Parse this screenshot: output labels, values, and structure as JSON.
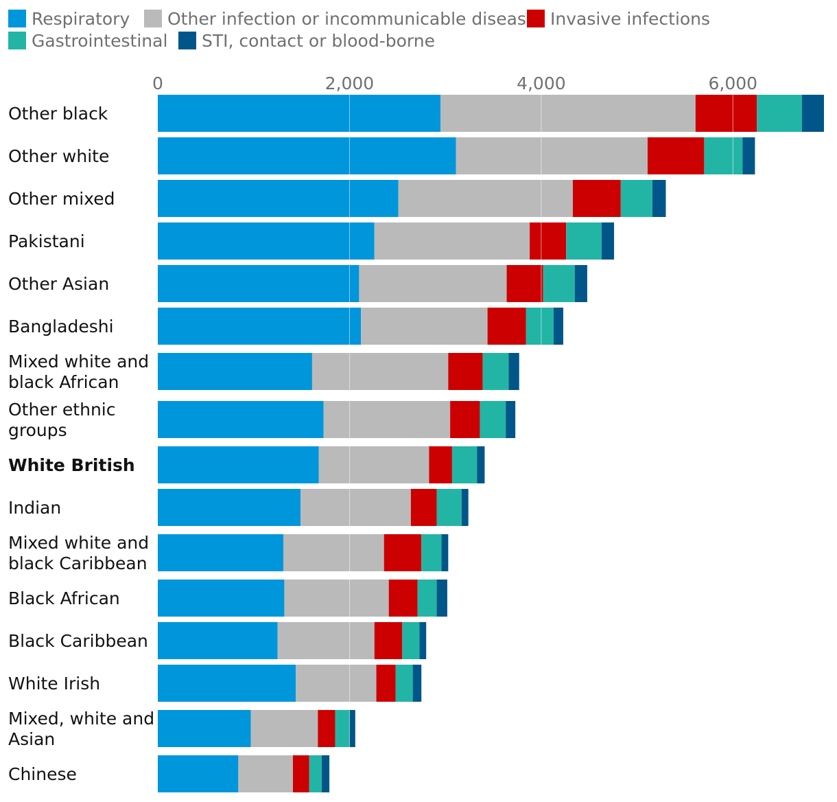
{
  "chart_data": {
    "type": "bar",
    "orientation": "horizontal",
    "stacked": true,
    "title": "",
    "xlabel": "",
    "ylabel": "",
    "xlim": [
      0,
      7000
    ],
    "x_ticks": [
      0,
      2000,
      4000,
      6000
    ],
    "x_tick_labels": [
      "0",
      "2,000",
      "4,000",
      "6,000"
    ],
    "grid": true,
    "legend_position": "top-left",
    "categories": [
      "Other black",
      "Other white",
      "Other mixed",
      "Pakistani",
      "Other Asian",
      "Bangladeshi",
      "Mixed white and black African",
      "Other ethnic groups",
      "White British",
      "Indian",
      "Mixed white and black Caribbean",
      "Black African",
      "Black Caribbean",
      "White Irish",
      "Mixed, white and Asian",
      "Chinese"
    ],
    "highlighted_category": "White British",
    "series": [
      {
        "name": "Respiratory",
        "color": "#0096db",
        "values": [
          2950,
          3110,
          2510,
          2260,
          2100,
          2120,
          1610,
          1730,
          1680,
          1490,
          1310,
          1320,
          1250,
          1440,
          970,
          840
        ]
      },
      {
        "name": "Other infection or incommunicable disease",
        "color": "#bababa",
        "values": [
          2660,
          2000,
          1820,
          1620,
          1540,
          1320,
          1420,
          1320,
          1150,
          1150,
          1050,
          1090,
          1010,
          840,
          700,
          570
        ]
      },
      {
        "name": "Invasive infections",
        "color": "#cc0000",
        "values": [
          640,
          590,
          500,
          380,
          380,
          400,
          360,
          310,
          240,
          270,
          390,
          300,
          290,
          200,
          180,
          170
        ]
      },
      {
        "name": "Gastrointestinal",
        "color": "#22b5a5",
        "values": [
          470,
          400,
          330,
          370,
          330,
          290,
          270,
          270,
          260,
          260,
          210,
          200,
          180,
          180,
          150,
          130
        ]
      },
      {
        "name": "STI, contact or blood-borne",
        "color": "#005689",
        "values": [
          230,
          130,
          140,
          130,
          130,
          100,
          110,
          100,
          80,
          70,
          70,
          110,
          70,
          90,
          60,
          80
        ]
      }
    ],
    "category_lines": [
      [
        "Other black"
      ],
      [
        "Other white"
      ],
      [
        "Other mixed"
      ],
      [
        "Pakistani"
      ],
      [
        "Other Asian"
      ],
      [
        "Bangladeshi"
      ],
      [
        "Mixed white and",
        "black African"
      ],
      [
        "Other ethnic",
        "groups"
      ],
      [
        "White British"
      ],
      [
        "Indian"
      ],
      [
        "Mixed white and",
        "black Caribbean"
      ],
      [
        "Black African"
      ],
      [
        "Black Caribbean"
      ],
      [
        "White Irish"
      ],
      [
        "Mixed, white and",
        "Asian"
      ],
      [
        "Chinese"
      ]
    ]
  }
}
